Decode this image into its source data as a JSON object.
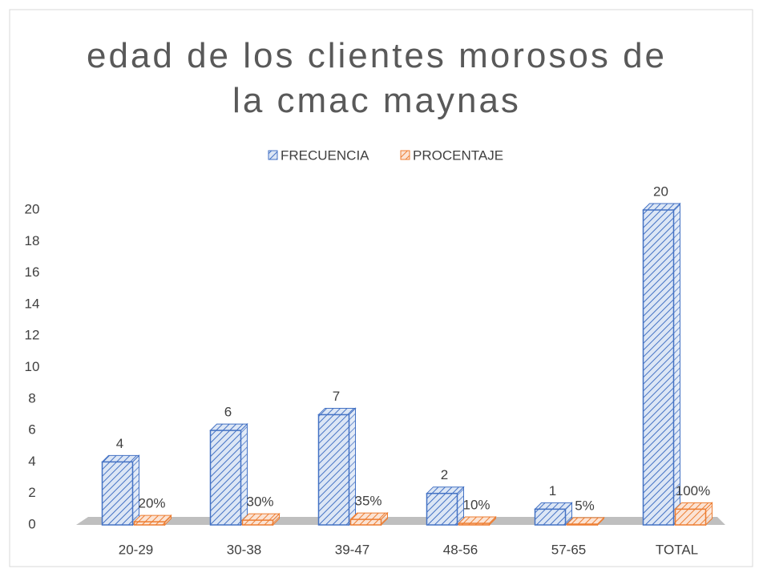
{
  "chart_data": {
    "type": "bar3d",
    "title": "edad de los clientes morosos de la cmac maynas",
    "categories": [
      "20-29",
      "30-38",
      "39-47",
      "48-56",
      "57-65",
      "TOTAL"
    ],
    "series": [
      {
        "name": "FRECUENCIA",
        "color": "#4472c4",
        "values": [
          4,
          6,
          7,
          2,
          1,
          20
        ]
      },
      {
        "name": "PROCENTAJE",
        "color": "#ed7d31",
        "values": [
          0.2,
          0.3,
          0.35,
          0.1,
          0.05,
          1
        ],
        "value_labels": [
          "20%",
          "30%",
          "35%",
          "10%",
          "5%",
          "100%"
        ]
      }
    ],
    "ylim": [
      0,
      20
    ],
    "yticks": [
      0,
      2,
      4,
      6,
      8,
      10,
      12,
      14,
      16,
      18,
      20
    ],
    "legend": "top",
    "grid": false
  }
}
